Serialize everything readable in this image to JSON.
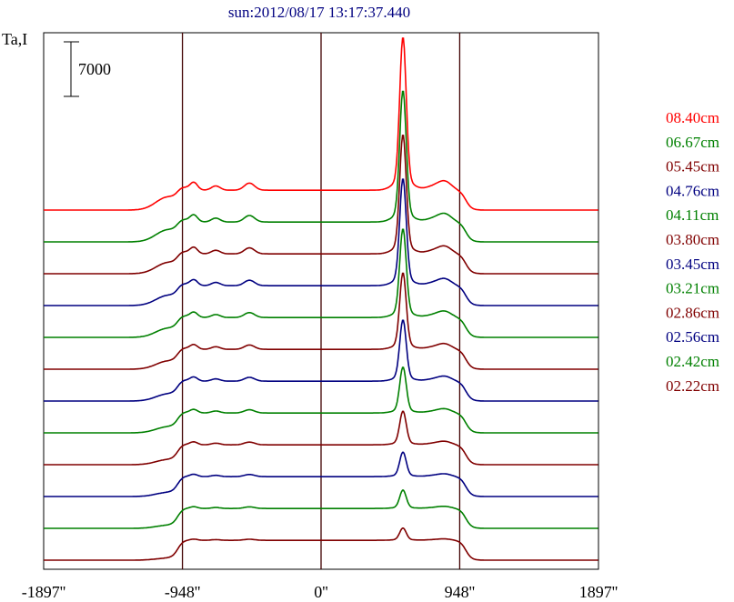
{
  "chart_data": {
    "type": "line",
    "title": "sun:2012/08/17 13:17:37.440",
    "ylabel": "Ta,I",
    "scale_bar_label": "7000",
    "xlim": [
      -1897,
      1897
    ],
    "x_ticks": [
      {
        "value": -1897,
        "label": "-1897''"
      },
      {
        "value": -948,
        "label": "-948''"
      },
      {
        "value": 0,
        "label": "0''"
      },
      {
        "value": 948,
        "label": "948''"
      },
      {
        "value": 1897,
        "label": "1897''"
      }
    ],
    "vertical_lines": [
      -948,
      0,
      948
    ],
    "legend_placement": "right",
    "series": [
      {
        "name": "08.40cm",
        "color": "#ff0000",
        "offset": 11,
        "peak": 1.0
      },
      {
        "name": "06.67cm",
        "color": "#008000",
        "offset": 10,
        "peak": 0.86
      },
      {
        "name": "05.45cm",
        "color": "#800000",
        "offset": 9,
        "peak": 0.78
      },
      {
        "name": "04.76cm",
        "color": "#000080",
        "offset": 8,
        "peak": 0.7
      },
      {
        "name": "04.11cm",
        "color": "#008000",
        "offset": 7,
        "peak": 0.58
      },
      {
        "name": "03.80cm",
        "color": "#800000",
        "offset": 6,
        "peak": 0.5
      },
      {
        "name": "03.45cm",
        "color": "#000080",
        "offset": 5,
        "peak": 0.4
      },
      {
        "name": "03.21cm",
        "color": "#008000",
        "offset": 4,
        "peak": 0.3
      },
      {
        "name": "02.86cm",
        "color": "#800000",
        "offset": 3,
        "peak": 0.22
      },
      {
        "name": "02.56cm",
        "color": "#000080",
        "offset": 2,
        "peak": 0.16
      },
      {
        "name": "02.42cm",
        "color": "#008000",
        "offset": 1,
        "peak": 0.12
      },
      {
        "name": "02.22cm",
        "color": "#800000",
        "offset": 0,
        "peak": 0.08
      }
    ]
  }
}
